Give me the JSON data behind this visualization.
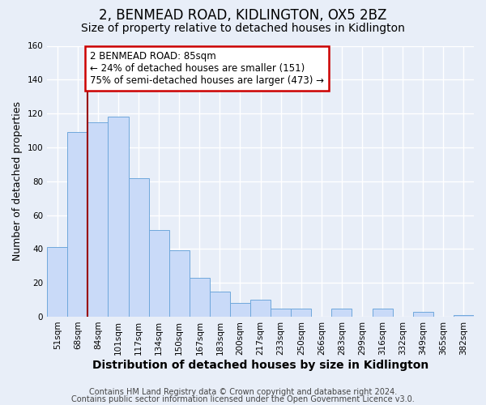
{
  "title": "2, BENMEAD ROAD, KIDLINGTON, OX5 2BZ",
  "subtitle": "Size of property relative to detached houses in Kidlington",
  "xlabel": "Distribution of detached houses by size in Kidlington",
  "ylabel": "Number of detached properties",
  "bar_labels": [
    "51sqm",
    "68sqm",
    "84sqm",
    "101sqm",
    "117sqm",
    "134sqm",
    "150sqm",
    "167sqm",
    "183sqm",
    "200sqm",
    "217sqm",
    "233sqm",
    "250sqm",
    "266sqm",
    "283sqm",
    "299sqm",
    "316sqm",
    "332sqm",
    "349sqm",
    "365sqm",
    "382sqm"
  ],
  "bar_values": [
    41,
    109,
    115,
    118,
    82,
    51,
    39,
    23,
    15,
    8,
    10,
    5,
    5,
    0,
    5,
    0,
    5,
    0,
    3,
    0,
    1
  ],
  "bar_color": "#c9daf8",
  "bar_edge_color": "#6fa8dc",
  "ylim": [
    0,
    160
  ],
  "yticks": [
    0,
    20,
    40,
    60,
    80,
    100,
    120,
    140,
    160
  ],
  "property_line_color": "#990000",
  "annotation_box_text": "2 BENMEAD ROAD: 85sqm\n← 24% of detached houses are smaller (151)\n75% of semi-detached houses are larger (473) →",
  "annotation_box_color": "#cc0000",
  "footer_line1": "Contains HM Land Registry data © Crown copyright and database right 2024.",
  "footer_line2": "Contains public sector information licensed under the Open Government Licence v3.0.",
  "bg_color": "#e8eef8",
  "plot_bg_color": "#e8eef8",
  "grid_color": "#ffffff",
  "title_fontsize": 12,
  "subtitle_fontsize": 10,
  "xlabel_fontsize": 10,
  "ylabel_fontsize": 9,
  "tick_fontsize": 7.5,
  "footer_fontsize": 7,
  "annot_fontsize": 8.5
}
